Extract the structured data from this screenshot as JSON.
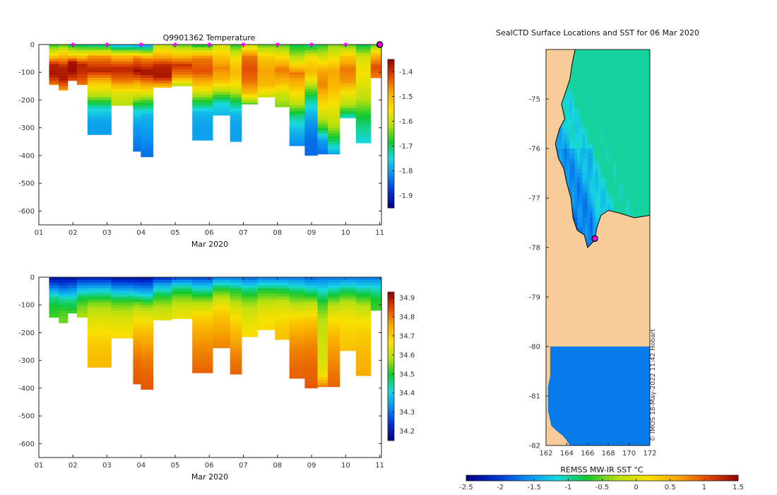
{
  "chart_data": [
    {
      "type": "heatmap",
      "title": "Q9901362  Temperature",
      "xlabel": "Mar 2020",
      "ylabel": "",
      "xlim": [
        1,
        11.05
      ],
      "ylim": [
        -650,
        0
      ],
      "x_ticks": [
        "01",
        "02",
        "03",
        "04",
        "05",
        "06",
        "07",
        "08",
        "09",
        "10",
        "11"
      ],
      "y_ticks": [
        "0",
        "-100",
        "-200",
        "-300",
        "-400",
        "-500",
        "-600"
      ],
      "colorbar": {
        "min": -1.95,
        "max": -1.35,
        "ticks": [
          "-1.4",
          "-1.5",
          "-1.6",
          "-1.7",
          "-1.8",
          "-1.9"
        ],
        "colormap": [
          "#000080",
          "#0030d0",
          "#0a8ef0",
          "#18d8e0",
          "#12c830",
          "#b8e010",
          "#f8e000",
          "#f8a800",
          "#e04800",
          "#900000"
        ]
      },
      "surface_markers_day": [
        2,
        3,
        4,
        5,
        6,
        7,
        8,
        9,
        10
      ],
      "current_marker_day": 11,
      "casts": [
        {
          "day": 1.45,
          "max_depth": 145,
          "profile": [
            -1.68,
            -1.55,
            -1.38,
            -1.37,
            -1.45
          ]
        },
        {
          "day": 1.72,
          "max_depth": 165,
          "profile": [
            -1.66,
            -1.5,
            -1.38,
            -1.37,
            -1.48
          ]
        },
        {
          "day": 1.98,
          "max_depth": 130,
          "profile": [
            -1.7,
            -1.56,
            -1.37,
            -1.36,
            -1.42
          ]
        },
        {
          "day": 2.25,
          "max_depth": 145,
          "profile": [
            -1.72,
            -1.55,
            -1.38,
            -1.4,
            -1.45
          ]
        },
        {
          "day": 2.6,
          "max_depth": 325,
          "profile": [
            -1.74,
            -1.46,
            -1.38,
            -1.52,
            -1.62,
            -1.75,
            -1.8,
            -1.8
          ]
        },
        {
          "day": 3.65,
          "max_depth": 220,
          "profile": [
            -1.8,
            -1.5,
            -1.38,
            -1.45,
            -1.58,
            -1.62
          ]
        },
        {
          "day": 3.88,
          "max_depth": 385,
          "profile": [
            -1.82,
            -1.45,
            -1.36,
            -1.5,
            -1.62,
            -1.75,
            -1.8,
            -1.82,
            -1.84
          ]
        },
        {
          "day": 4.1,
          "max_depth": 405,
          "profile": [
            -1.82,
            -1.46,
            -1.36,
            -1.5,
            -1.66,
            -1.78,
            -1.8,
            -1.82,
            -1.84
          ]
        },
        {
          "day": 4.6,
          "max_depth": 155,
          "profile": [
            -1.62,
            -1.5,
            -1.38,
            -1.37,
            -1.52
          ]
        },
        {
          "day": 5.2,
          "max_depth": 150,
          "profile": [
            -1.66,
            -1.52,
            -1.4,
            -1.46,
            -1.62
          ]
        },
        {
          "day": 5.8,
          "max_depth": 345,
          "profile": [
            -1.7,
            -1.45,
            -1.42,
            -1.52,
            -1.66,
            -1.78,
            -1.8,
            -1.8
          ]
        },
        {
          "day": 6.4,
          "max_depth": 255,
          "profile": [
            -1.6,
            -1.52,
            -1.46,
            -1.5,
            -1.62,
            -1.75,
            -1.78
          ]
        },
        {
          "day": 6.82,
          "max_depth": 350,
          "profile": [
            -1.68,
            -1.55,
            -1.5,
            -1.56,
            -1.68,
            -1.78,
            -1.8,
            -1.8
          ]
        },
        {
          "day": 7.08,
          "max_depth": 215,
          "profile": [
            -1.6,
            -1.45,
            -1.42,
            -1.44,
            -1.5,
            -1.66
          ]
        },
        {
          "day": 7.75,
          "max_depth": 190,
          "profile": [
            -1.66,
            -1.52,
            -1.48,
            -1.5,
            -1.6
          ]
        },
        {
          "day": 8.1,
          "max_depth": 225,
          "profile": [
            -1.66,
            -1.55,
            -1.45,
            -1.5,
            -1.6,
            -1.64
          ]
        },
        {
          "day": 8.6,
          "max_depth": 365,
          "profile": [
            -1.7,
            -1.6,
            -1.45,
            -1.52,
            -1.6,
            -1.72,
            -1.78,
            -1.82
          ]
        },
        {
          "day": 9.0,
          "max_depth": 400,
          "profile": [
            -1.72,
            -1.55,
            -1.5,
            -1.62,
            -1.72,
            -1.78,
            -1.82,
            -1.84,
            -1.84
          ]
        },
        {
          "day": 9.35,
          "max_depth": 395,
          "profile": [
            -1.68,
            -1.58,
            -1.48,
            -1.46,
            -1.52,
            -1.58,
            -1.66,
            -1.8,
            -1.84
          ]
        },
        {
          "day": 9.6,
          "max_depth": 395,
          "profile": [
            -1.64,
            -1.56,
            -1.48,
            -1.5,
            -1.54,
            -1.58,
            -1.62,
            -1.7,
            -1.8
          ]
        },
        {
          "day": 10.05,
          "max_depth": 265,
          "profile": [
            -1.66,
            -1.52,
            -1.45,
            -1.47,
            -1.56,
            -1.62,
            -1.75
          ]
        },
        {
          "day": 10.55,
          "max_depth": 355,
          "profile": [
            -1.7,
            -1.58,
            -1.55,
            -1.58,
            -1.62,
            -1.68,
            -1.72,
            -1.75
          ]
        },
        {
          "day": 10.92,
          "max_depth": 120,
          "profile": [
            -1.66,
            -1.5,
            -1.42,
            -1.45
          ]
        }
      ]
    },
    {
      "type": "heatmap",
      "title": "",
      "xlabel": "Mar 2020",
      "ylabel": "",
      "xlim": [
        1,
        11.05
      ],
      "ylim": [
        -650,
        0
      ],
      "x_ticks": [
        "01",
        "02",
        "03",
        "04",
        "05",
        "06",
        "07",
        "08",
        "09",
        "10",
        "11"
      ],
      "y_ticks": [
        "0",
        "-100",
        "-200",
        "-300",
        "-400",
        "-500",
        "-600"
      ],
      "colorbar": {
        "min": 34.15,
        "max": 34.93,
        "ticks": [
          "34.9",
          "34.8",
          "34.7",
          "34.6",
          "34.5",
          "34.4",
          "34.3",
          "34.2"
        ],
        "colormap": [
          "#000080",
          "#0030d0",
          "#0a8ef0",
          "#18d8e0",
          "#12c830",
          "#b8e010",
          "#f8e000",
          "#f8a800",
          "#e04800",
          "#900000"
        ]
      },
      "casts": [
        {
          "day": 1.45,
          "max_depth": 145,
          "profile": [
            34.18,
            34.3,
            34.45,
            34.5,
            34.52
          ]
        },
        {
          "day": 1.72,
          "max_depth": 165,
          "profile": [
            34.18,
            34.3,
            34.45,
            34.52,
            34.55
          ]
        },
        {
          "day": 1.98,
          "max_depth": 130,
          "profile": [
            34.18,
            34.32,
            34.46,
            34.52
          ]
        },
        {
          "day": 2.25,
          "max_depth": 145,
          "profile": [
            34.2,
            34.35,
            34.48,
            34.55,
            34.58
          ]
        },
        {
          "day": 2.6,
          "max_depth": 325,
          "profile": [
            34.2,
            34.4,
            34.55,
            34.62,
            34.66,
            34.7,
            34.72,
            34.73
          ]
        },
        {
          "day": 3.65,
          "max_depth": 220,
          "profile": [
            34.18,
            34.35,
            34.52,
            34.6,
            34.65,
            34.68
          ]
        },
        {
          "day": 3.88,
          "max_depth": 385,
          "profile": [
            34.18,
            34.35,
            34.55,
            34.65,
            34.72,
            34.77,
            34.8,
            34.82,
            34.83
          ]
        },
        {
          "day": 4.1,
          "max_depth": 405,
          "profile": [
            34.18,
            34.35,
            34.55,
            34.66,
            34.73,
            34.77,
            34.8,
            34.82,
            34.83
          ]
        },
        {
          "day": 4.6,
          "max_depth": 155,
          "profile": [
            34.22,
            34.4,
            34.52,
            34.6,
            34.64
          ]
        },
        {
          "day": 5.2,
          "max_depth": 150,
          "profile": [
            34.25,
            34.45,
            34.55,
            34.62,
            34.66
          ]
        },
        {
          "day": 5.8,
          "max_depth": 345,
          "profile": [
            34.25,
            34.45,
            34.6,
            34.7,
            34.75,
            34.78,
            34.8,
            34.82
          ]
        },
        {
          "day": 6.4,
          "max_depth": 255,
          "profile": [
            34.3,
            34.5,
            34.62,
            34.7,
            34.74,
            34.77,
            34.79
          ]
        },
        {
          "day": 6.82,
          "max_depth": 350,
          "profile": [
            34.3,
            34.5,
            34.6,
            34.68,
            34.73,
            34.77,
            34.8,
            34.82
          ]
        },
        {
          "day": 7.08,
          "max_depth": 215,
          "profile": [
            34.28,
            34.45,
            34.55,
            34.62,
            34.65,
            34.68
          ]
        },
        {
          "day": 7.75,
          "max_depth": 190,
          "profile": [
            34.3,
            34.5,
            34.6,
            34.66,
            34.68
          ]
        },
        {
          "day": 8.1,
          "max_depth": 225,
          "profile": [
            34.3,
            34.48,
            34.6,
            34.66,
            34.7,
            34.72
          ]
        },
        {
          "day": 8.6,
          "max_depth": 365,
          "profile": [
            34.3,
            34.48,
            34.6,
            34.7,
            34.76,
            34.79,
            34.81,
            34.82
          ]
        },
        {
          "day": 9.0,
          "max_depth": 400,
          "profile": [
            34.28,
            34.45,
            34.6,
            34.7,
            34.76,
            34.79,
            34.81,
            34.82,
            34.83
          ]
        },
        {
          "day": 9.35,
          "max_depth": 395,
          "profile": [
            34.3,
            34.42,
            34.52,
            34.58,
            34.6,
            34.62,
            34.62,
            34.65,
            34.8
          ]
        },
        {
          "day": 9.6,
          "max_depth": 395,
          "profile": [
            34.3,
            34.45,
            34.58,
            34.66,
            34.72,
            34.76,
            34.78,
            34.8,
            34.82
          ]
        },
        {
          "day": 10.05,
          "max_depth": 265,
          "profile": [
            34.3,
            34.46,
            34.58,
            34.65,
            34.68,
            34.7,
            34.72
          ]
        },
        {
          "day": 10.55,
          "max_depth": 355,
          "profile": [
            34.3,
            34.46,
            34.58,
            34.66,
            34.7,
            34.72,
            34.74,
            34.75
          ]
        },
        {
          "day": 10.92,
          "max_depth": 120,
          "profile": [
            34.3,
            34.42,
            34.5,
            34.52
          ]
        }
      ]
    },
    {
      "type": "heatmap",
      "title": "SealCTD Surface Locations and SST for 06 Mar 2020",
      "xlabel": "",
      "ylabel": "",
      "xlim": [
        162,
        172
      ],
      "ylim": [
        -82,
        -74
      ],
      "x_ticks": [
        "162",
        "164",
        "166",
        "168",
        "170",
        "172"
      ],
      "y_ticks": [
        "-75",
        "-76",
        "-77",
        "-78",
        "-79",
        "-80",
        "-81",
        "-82"
      ],
      "colorbar": {
        "label": "REMSS MW-IR SST °C",
        "min": -2.5,
        "max": 1.5,
        "ticks": [
          "-2.5",
          "-2",
          "-1.5",
          "-1",
          "-0.5",
          "0",
          "0.5",
          "1",
          "1.5"
        ],
        "colormap": [
          "#000080",
          "#0030d0",
          "#0a8ef0",
          "#18d8e0",
          "#12c830",
          "#b8e010",
          "#f8e000",
          "#f8a800",
          "#e04800",
          "#900000"
        ]
      },
      "land_color": "#f8cc98",
      "ice_shelf_sst": -1.7,
      "ice_shelf_north_lat": -80,
      "seal_location": {
        "lon": 166.7,
        "lat": -77.82
      },
      "watermark": "© IMOS 18-May-2022 11:42 Hobart"
    }
  ]
}
